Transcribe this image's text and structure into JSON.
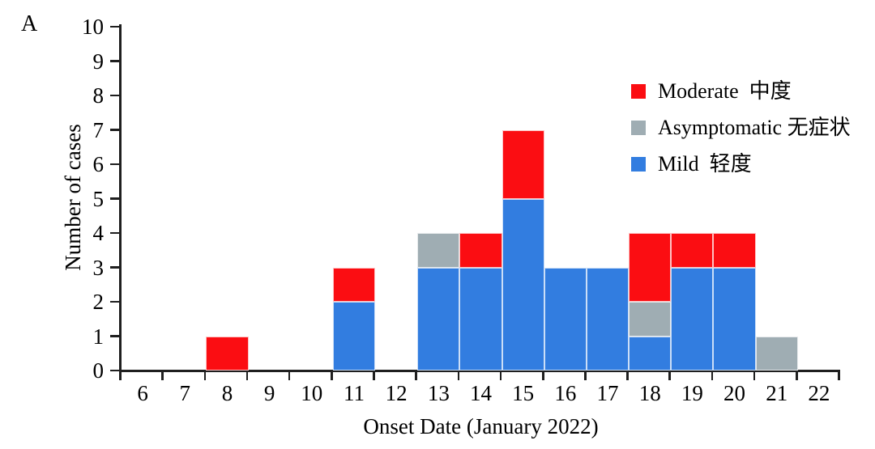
{
  "panel_label": "A",
  "colors": {
    "mild": "#327de0",
    "asymptomatic": "#9fadb3",
    "moderate": "#fb0d12",
    "axis": "#1f1f1f",
    "text": "#000000",
    "background": "#ffffff"
  },
  "legend": {
    "position": "upper right",
    "items": [
      {
        "key": "moderate",
        "label": "Moderate  中度"
      },
      {
        "key": "asymptomatic",
        "label": "Asymptomatic 无症状"
      },
      {
        "key": "mild",
        "label": "Mild  轻度"
      }
    ]
  },
  "chart_data": {
    "type": "bar",
    "stacked": true,
    "title": "",
    "xlabel": "Onset Date (January 2022)",
    "ylabel": "Number of cases",
    "ylim": [
      0,
      10
    ],
    "grid": false,
    "legend_position": "upper right",
    "yticks": [
      "0",
      "1",
      "2",
      "3",
      "4",
      "5",
      "6",
      "7",
      "8",
      "9",
      "10"
    ],
    "categories": [
      "6",
      "7",
      "8",
      "9",
      "10",
      "11",
      "12",
      "13",
      "14",
      "15",
      "16",
      "17",
      "18",
      "19",
      "20",
      "21",
      "22"
    ],
    "stack_order_bottom_to_top": [
      "mild",
      "asymptomatic",
      "moderate"
    ],
    "series": [
      {
        "key": "mild",
        "name": "Mild 轻度",
        "values": [
          0,
          0,
          0,
          0,
          0,
          2,
          0,
          3,
          3,
          5,
          3,
          3,
          1,
          3,
          3,
          0,
          0
        ]
      },
      {
        "key": "asymptomatic",
        "name": "Asymptomatic 无症状",
        "values": [
          0,
          0,
          0,
          0,
          0,
          0,
          0,
          1,
          0,
          0,
          0,
          0,
          1,
          0,
          0,
          1,
          0
        ]
      },
      {
        "key": "moderate",
        "name": "Moderate 中度",
        "values": [
          0,
          0,
          1,
          0,
          0,
          1,
          0,
          0,
          1,
          2,
          0,
          0,
          2,
          1,
          1,
          0,
          0
        ]
      }
    ],
    "totals": [
      0,
      0,
      1,
      0,
      0,
      3,
      0,
      4,
      4,
      7,
      3,
      3,
      4,
      4,
      4,
      1,
      0
    ]
  }
}
